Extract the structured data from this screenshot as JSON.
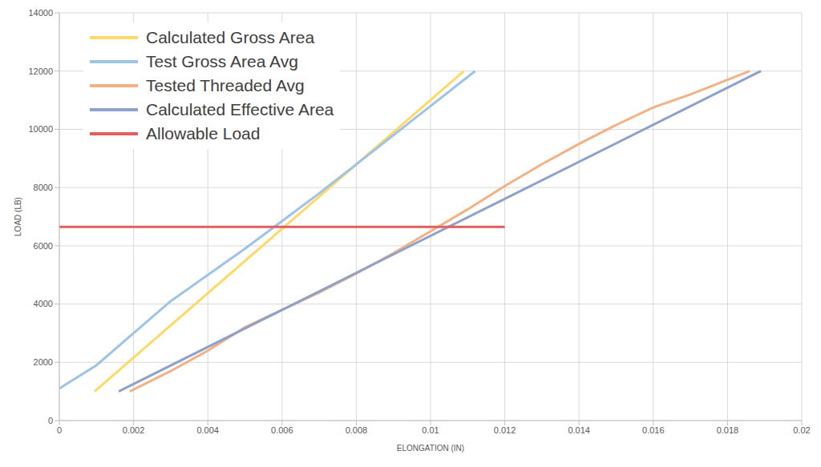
{
  "chart_data": {
    "type": "line",
    "x_label": "ELONGATION (IN)",
    "y_label": "LOAD (LB)",
    "xlim": [
      0,
      0.02
    ],
    "xticks": [
      0,
      0.002,
      0.004,
      0.006,
      0.008,
      0.01,
      0.012,
      0.014,
      0.016,
      0.018,
      0.02
    ],
    "ylim": [
      0,
      14000
    ],
    "yticks": [
      0,
      2000,
      4000,
      6000,
      8000,
      10000,
      12000,
      14000
    ],
    "grid": true,
    "legend": "upper left",
    "series": [
      {
        "name": "Calculated Gross Area",
        "color": "#ffd966",
        "x": [
          0.00095,
          0.0109
        ],
        "values": [
          1000,
          12000
        ]
      },
      {
        "name": "Test Gross Area Avg",
        "color": "#9dc3e6",
        "x": [
          0,
          0.001,
          0.002,
          0.003,
          0.004,
          0.005,
          0.006,
          0.007,
          0.008,
          0.009,
          0.01,
          0.0112
        ],
        "values": [
          1100,
          1900,
          3000,
          4100,
          5000,
          5900,
          6850,
          7800,
          8800,
          9800,
          10800,
          12000
        ]
      },
      {
        "name": "Tested Threaded Avg",
        "color": "#f4b183",
        "x": [
          0.0019,
          0.003,
          0.004,
          0.005,
          0.006,
          0.007,
          0.008,
          0.009,
          0.01,
          0.011,
          0.012,
          0.013,
          0.014,
          0.015,
          0.016,
          0.017,
          0.0186
        ],
        "values": [
          1000,
          1700,
          2400,
          3200,
          3800,
          4400,
          5050,
          5750,
          6500,
          7250,
          8050,
          8800,
          9500,
          10150,
          10750,
          11200,
          12000
        ]
      },
      {
        "name": "Calculated Effective Area",
        "color": "#8ea0cc",
        "x": [
          0.0016,
          0.0189
        ],
        "values": [
          1000,
          12000
        ]
      },
      {
        "name": "Allowable Load",
        "color": "#e06060",
        "x": [
          0,
          0.012
        ],
        "values": [
          6650,
          6650
        ]
      }
    ]
  }
}
